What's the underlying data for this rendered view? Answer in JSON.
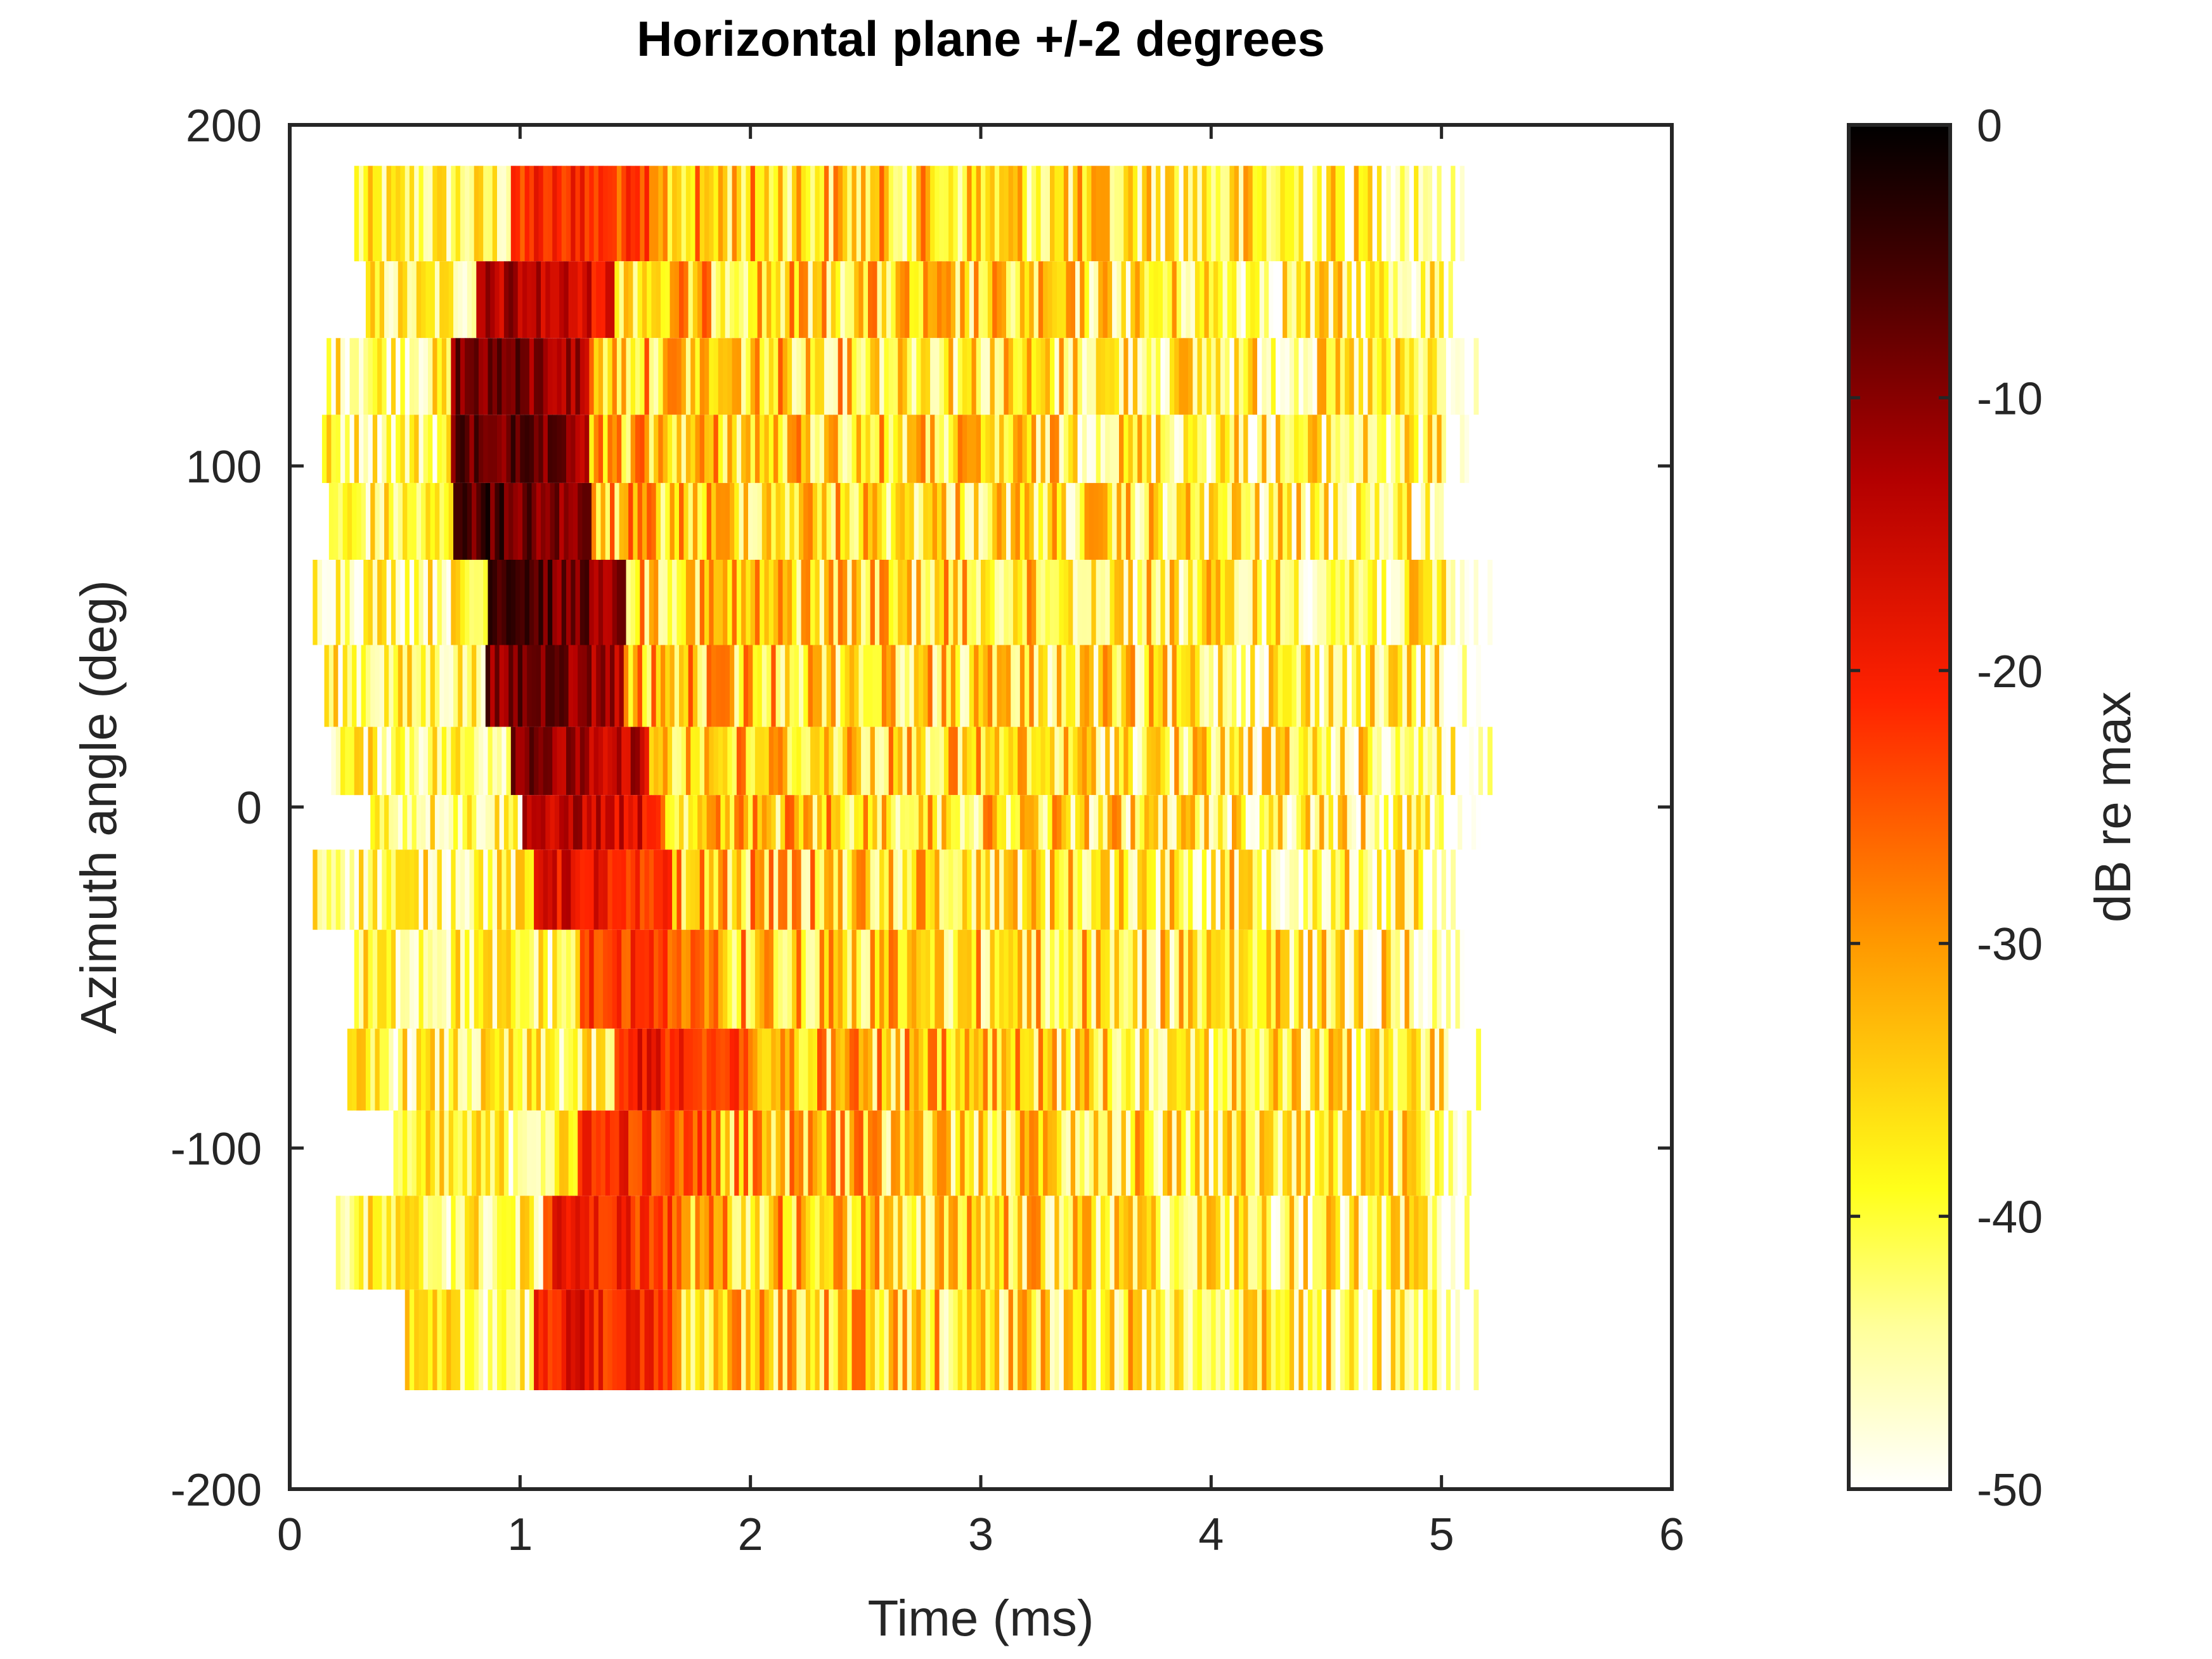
{
  "chart_data": {
    "type": "heatmap",
    "title": "Horizontal plane +/-2 degrees",
    "xlabel": "Time (ms)",
    "ylabel": "Azimuth angle (deg)",
    "xlim": [
      0,
      6
    ],
    "ylim": [
      -200,
      200
    ],
    "xticks": [
      0,
      1,
      2,
      3,
      4,
      5,
      6
    ],
    "yticks": [
      -200,
      -100,
      0,
      100,
      200
    ],
    "xtick_labels": [
      "0",
      "1",
      "2",
      "3",
      "4",
      "5",
      "6"
    ],
    "ytick_labels": [
      "-200",
      "-100",
      "0",
      "100",
      "200"
    ],
    "colorbar": {
      "label": "dB re max",
      "limits": [
        -50,
        0
      ],
      "ticks": [
        0,
        -10,
        -20,
        -30,
        -40,
        -50
      ],
      "tick_labels": [
        "0",
        "-10",
        "-20",
        "-30",
        "-40",
        "-50"
      ],
      "colormap": "hot (reversed: white low, black high)"
    },
    "time_range_ms": [
      0.1,
      5.2
    ],
    "rows": [
      {
        "azimuth": 170,
        "t_min": 0.28,
        "t_max": 5.1,
        "peak_time": 1.1,
        "peak_db": -15
      },
      {
        "azimuth": 150,
        "t_min": 0.33,
        "t_max": 5.15,
        "peak_time": 0.95,
        "peak_db": -8
      },
      {
        "azimuth": 125,
        "t_min": 0.16,
        "t_max": 5.15,
        "peak_time": 0.85,
        "peak_db": -3
      },
      {
        "azimuth": 105,
        "t_min": 0.14,
        "t_max": 5.15,
        "peak_time": 0.85,
        "peak_db": -2
      },
      {
        "azimuth": 85,
        "t_min": 0.17,
        "t_max": 5.1,
        "peak_time": 0.85,
        "peak_db": -1
      },
      {
        "azimuth": 60,
        "t_min": 0.1,
        "t_max": 5.2,
        "peak_time": 1.0,
        "peak_db": -1
      },
      {
        "azimuth": 35,
        "t_min": 0.15,
        "t_max": 5.15,
        "peak_time": 1.0,
        "peak_db": -3
      },
      {
        "azimuth": 12,
        "t_min": 0.18,
        "t_max": 5.2,
        "peak_time": 1.1,
        "peak_db": -5
      },
      {
        "azimuth": -5,
        "t_min": 0.35,
        "t_max": 5.15,
        "peak_time": 1.15,
        "peak_db": -8
      },
      {
        "azimuth": -20,
        "t_min": 0.1,
        "t_max": 5.05,
        "peak_time": 1.2,
        "peak_db": -12
      },
      {
        "azimuth": -52,
        "t_min": 0.28,
        "t_max": 5.1,
        "peak_time": 1.4,
        "peak_db": -17
      },
      {
        "azimuth": -78,
        "t_min": 0.25,
        "t_max": 5.15,
        "peak_time": 1.55,
        "peak_db": -14
      },
      {
        "azimuth": -100,
        "t_min": 0.45,
        "t_max": 5.15,
        "peak_time": 1.4,
        "peak_db": -16
      },
      {
        "azimuth": -128,
        "t_min": 0.2,
        "t_max": 5.1,
        "peak_time": 1.25,
        "peak_db": -14
      },
      {
        "azimuth": -155,
        "t_min": 0.5,
        "t_max": 5.15,
        "peak_time": 1.2,
        "peak_db": -13
      }
    ]
  }
}
